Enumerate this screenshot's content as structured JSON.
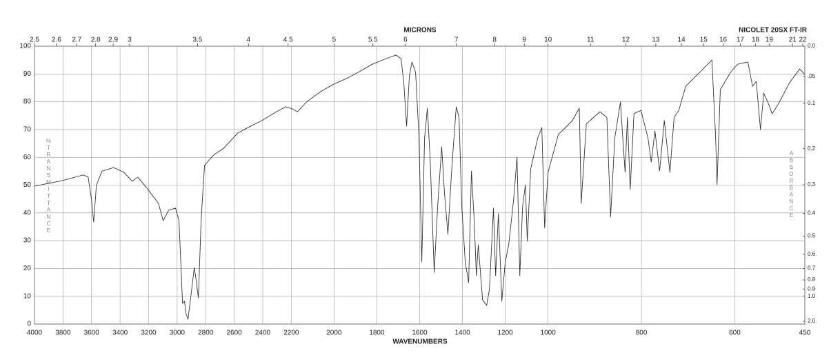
{
  "chart_data": {
    "type": "line",
    "title": "MICRONS",
    "subtitle": "NICOLET 20SX FT-IR",
    "x_label": "WAVENUMBERS",
    "y_label": "%TRANSMITTANCE",
    "y2_label": "ABSORBANCE",
    "xlim": [
      4000,
      450
    ],
    "x_scale_breaks": [
      2200,
      1000
    ],
    "xticks": [
      4000,
      3800,
      3600,
      3400,
      3200,
      3000,
      2800,
      2600,
      2400,
      2200,
      2000,
      1800,
      1600,
      1400,
      1200,
      1000,
      800,
      600,
      450
    ],
    "x2ticks": [
      2.5,
      2.6,
      2.7,
      2.8,
      2.9,
      3,
      3.5,
      4,
      4.5,
      5,
      5.5,
      6,
      7,
      8,
      9,
      10,
      11,
      12,
      13,
      14,
      15,
      16,
      17,
      18,
      19,
      21,
      22
    ],
    "ylim": [
      0,
      100
    ],
    "yticks": [
      0,
      10,
      20,
      30,
      40,
      50,
      60,
      70,
      80,
      90,
      100
    ],
    "y2_scale": "absorbance",
    "y2ticks": [
      {
        "value": 0,
        "label": "0.0"
      },
      {
        "value": 0.05,
        "label": ".05"
      },
      0.1,
      0.2,
      0.3,
      0.4,
      0.5,
      0.6,
      0.7,
      0.8,
      0.9,
      {
        "value": 1,
        "label": "1.0"
      },
      {
        "value": 2,
        "label": "2.0"
      }
    ],
    "grid": true,
    "color": "#333333",
    "x": [
      4000,
      3807,
      3662,
      3624,
      3600,
      3585,
      3566,
      3527,
      3445,
      3373,
      3315,
      3276,
      3204,
      3131,
      3098,
      3059,
      3011,
      2987,
      2962,
      2948,
      2938,
      2924,
      2904,
      2880,
      2871,
      2851,
      2832,
      2808,
      2745,
      2673,
      2576,
      2504,
      2407,
      2311,
      2239,
      2194,
      2171,
      2129,
      2064,
      2000,
      1935,
      1887,
      1822,
      1758,
      1710,
      1687,
      1674,
      1661,
      1648,
      1636,
      1619,
      1603,
      1590,
      1577,
      1564,
      1551,
      1532,
      1516,
      1497,
      1484,
      1468,
      1451,
      1442,
      1429,
      1416,
      1403,
      1387,
      1371,
      1358,
      1345,
      1335,
      1326,
      1306,
      1287,
      1274,
      1255,
      1245,
      1232,
      1216,
      1200,
      1184,
      1161,
      1145,
      1132,
      1119,
      1106,
      1097,
      1081,
      1048,
      1029,
      1016,
      1000,
      978,
      948,
      933,
      929,
      918,
      889,
      874,
      866,
      857,
      845,
      835,
      830,
      824,
      816,
      801,
      786,
      779,
      771,
      761,
      751,
      739,
      730,
      720,
      705,
      668,
      649,
      641,
      638,
      631,
      609,
      594,
      572,
      562,
      554,
      545,
      538,
      528,
      520,
      506,
      483,
      461,
      450
    ],
    "values": [
      49.6,
      51.6,
      53.6,
      53,
      44.7,
      36.7,
      50,
      55,
      56.3,
      54.6,
      51.4,
      52.9,
      48.4,
      43.4,
      37.2,
      41,
      41.7,
      37.2,
      7.4,
      8.2,
      3.7,
      1.7,
      9.9,
      20.3,
      17.4,
      9.4,
      37.2,
      57.1,
      60.8,
      63.3,
      68.7,
      70.7,
      73.2,
      76.2,
      78.2,
      77.4,
      76.4,
      79.9,
      83.6,
      86.4,
      88.6,
      90.6,
      93.5,
      95.5,
      96.8,
      95.5,
      86.8,
      71.2,
      89.3,
      94.3,
      90.6,
      67,
      22.3,
      67,
      77.7,
      59.6,
      18.6,
      42.2,
      63.8,
      47.1,
      32.3,
      54.6,
      64.5,
      78.2,
      74.4,
      42.2,
      22.3,
      14.9,
      55.1,
      37.2,
      17.4,
      28.5,
      8.7,
      6.7,
      12.4,
      41.7,
      17.4,
      39.7,
      8.2,
      22.3,
      28.5,
      44.7,
      60,
      17.4,
      42.2,
      50.1,
      29.8,
      55.8,
      67,
      70.7,
      34.7,
      54.6,
      68.2,
      73.2,
      77.7,
      43.4,
      72,
      76.4,
      74.4,
      38.5,
      67,
      79.9,
      54.6,
      74.4,
      48.4,
      75.7,
      76.9,
      67,
      58.3,
      69.5,
      55.1,
      73.2,
      54.6,
      74.4,
      76.9,
      85.6,
      91.8,
      95,
      67,
      50.1,
      84.4,
      90.6,
      93.5,
      94.3,
      85.6,
      87.3,
      70,
      83.1,
      79.4,
      75.7,
      79.4,
      86.8,
      91.8,
      89.8
    ]
  }
}
